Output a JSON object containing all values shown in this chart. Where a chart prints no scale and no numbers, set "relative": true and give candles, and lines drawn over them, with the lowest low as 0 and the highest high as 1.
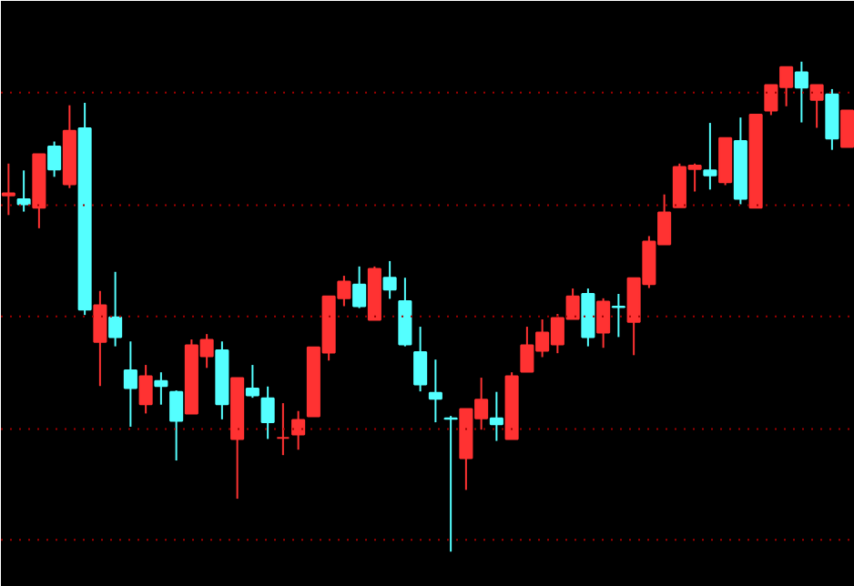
{
  "chart_data": {
    "type": "candlestick",
    "relative": true,
    "categories": [
      null,
      null,
      null,
      null,
      null,
      null,
      null,
      null,
      null,
      null,
      null,
      null,
      null,
      null,
      null,
      null,
      null,
      null,
      null,
      null,
      null,
      null,
      null,
      null,
      null,
      null,
      null,
      null,
      null,
      null,
      null,
      null,
      null,
      null,
      null,
      null,
      null,
      null,
      null,
      null,
      null,
      null,
      null,
      null,
      null,
      null,
      null,
      null,
      null,
      null,
      null,
      null,
      null,
      null,
      null,
      null
    ],
    "ohlc": [
      [
        0.727,
        0.792,
        0.687,
        0.731
      ],
      [
        0.719,
        0.778,
        0.694,
        0.709
      ],
      [
        0.702,
        0.811,
        0.66,
        0.811
      ],
      [
        0.827,
        0.837,
        0.765,
        0.78
      ],
      [
        0.75,
        0.911,
        0.742,
        0.859
      ],
      [
        0.864,
        0.916,
        0.483,
        0.494
      ],
      [
        0.428,
        0.532,
        0.338,
        0.503
      ],
      [
        0.478,
        0.571,
        0.419,
        0.438
      ],
      [
        0.37,
        0.429,
        0.255,
        0.334
      ],
      [
        0.301,
        0.381,
        0.282,
        0.358
      ],
      [
        0.348,
        0.366,
        0.3,
        0.338
      ],
      [
        0.326,
        0.329,
        0.186,
        0.267
      ],
      [
        0.282,
        0.433,
        0.282,
        0.421
      ],
      [
        0.399,
        0.444,
        0.375,
        0.432
      ],
      [
        0.411,
        0.429,
        0.27,
        0.301
      ],
      [
        0.23,
        0.354,
        0.108,
        0.354
      ],
      [
        0.333,
        0.381,
        0.314,
        0.319
      ],
      [
        0.313,
        0.337,
        0.23,
        0.264
      ],
      [
        0.232,
        0.303,
        0.197,
        0.232
      ],
      [
        0.239,
        0.287,
        0.208,
        0.269
      ],
      [
        0.276,
        0.417,
        0.276,
        0.417
      ],
      [
        0.406,
        0.521,
        0.39,
        0.521
      ],
      [
        0.517,
        0.563,
        0.501,
        0.551
      ],
      [
        0.545,
        0.582,
        0.497,
        0.501
      ],
      [
        0.473,
        0.582,
        0.473,
        0.577
      ],
      [
        0.559,
        0.593,
        0.516,
        0.535
      ],
      [
        0.511,
        0.559,
        0.419,
        0.423
      ],
      [
        0.407,
        0.459,
        0.327,
        0.341
      ],
      [
        0.324,
        0.392,
        0.264,
        0.312
      ],
      [
        0.272,
        0.277,
        0.0,
        0.271
      ],
      [
        0.191,
        0.291,
        0.126,
        0.291
      ],
      [
        0.272,
        0.355,
        0.249,
        0.31
      ],
      [
        0.272,
        0.326,
        0.226,
        0.26
      ],
      [
        0.23,
        0.366,
        0.23,
        0.358
      ],
      [
        0.367,
        0.459,
        0.367,
        0.421
      ],
      [
        0.41,
        0.474,
        0.397,
        0.447
      ],
      [
        0.423,
        0.485,
        0.405,
        0.477
      ],
      [
        0.475,
        0.537,
        0.475,
        0.521
      ],
      [
        0.526,
        0.537,
        0.419,
        0.438
      ],
      [
        0.447,
        0.517,
        0.416,
        0.51
      ],
      [
        0.5,
        0.526,
        0.438,
        0.499
      ],
      [
        0.469,
        0.558,
        0.401,
        0.558
      ],
      [
        0.546,
        0.644,
        0.538,
        0.633
      ],
      [
        0.627,
        0.729,
        0.627,
        0.692
      ],
      [
        0.703,
        0.792,
        0.703,
        0.785
      ],
      [
        0.781,
        0.792,
        0.735,
        0.788
      ],
      [
        0.778,
        0.875,
        0.739,
        0.768
      ],
      [
        0.754,
        0.844,
        0.748,
        0.844
      ],
      [
        0.838,
        0.886,
        0.709,
        0.72
      ],
      [
        0.702,
        0.892,
        0.702,
        0.892
      ],
      [
        0.9,
        0.952,
        0.891,
        0.952
      ],
      [
        0.948,
        0.989,
        0.909,
        0.989
      ],
      [
        0.978,
        1.0,
        0.876,
        0.947
      ],
      [
        0.922,
        0.952,
        0.865,
        0.952
      ],
      [
        0.933,
        0.944,
        0.82,
        0.843
      ],
      [
        0.826,
        0.9,
        0.826,
        0.9
      ]
    ],
    "colors": [
      "#ff3232",
      "#54ffff",
      "#ff3232",
      "#54ffff",
      "#ff3232",
      "#54ffff",
      "#ff3232",
      "#54ffff",
      "#54ffff",
      "#ff3232",
      "#54ffff",
      "#54ffff",
      "#ff3232",
      "#ff3232",
      "#54ffff",
      "#ff3232",
      "#54ffff",
      "#54ffff",
      "#ff3232",
      "#ff3232",
      "#ff3232",
      "#ff3232",
      "#ff3232",
      "#54ffff",
      "#ff3232",
      "#54ffff",
      "#54ffff",
      "#54ffff",
      "#54ffff",
      "#54ffff",
      "#ff3232",
      "#ff3232",
      "#54ffff",
      "#ff3232",
      "#ff3232",
      "#ff3232",
      "#ff3232",
      "#ff3232",
      "#54ffff",
      "#ff3232",
      "#54ffff",
      "#ff3232",
      "#ff3232",
      "#ff3232",
      "#ff3232",
      "#ff3232",
      "#54ffff",
      "#ff3232",
      "#54ffff",
      "#ff3232",
      "#ff3232",
      "#ff3232",
      "#54ffff",
      "#ff3232",
      "#54ffff",
      "#ff3232"
    ],
    "ref_lines": [
      {
        "axis": "y",
        "value": 0.937,
        "color": "#a00000",
        "line_style": "dotted"
      },
      {
        "axis": "y",
        "value": 0.707,
        "color": "#a00000",
        "line_style": "dotted"
      },
      {
        "axis": "y",
        "value": 0.48,
        "color": "#a00000",
        "line_style": "dotted"
      },
      {
        "axis": "y",
        "value": 0.25,
        "color": "#a00000",
        "line_style": "dotted"
      },
      {
        "axis": "y",
        "value": 0.024,
        "color": "#a00000",
        "line_style": "dotted"
      }
    ]
  }
}
